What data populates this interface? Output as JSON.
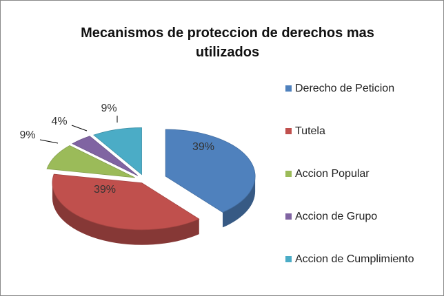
{
  "chart_data": {
    "type": "pie",
    "title": "Mecanismos de proteccion de derechos mas utilizados",
    "categories": [
      "Derecho de Peticion",
      "Tutela",
      "Accion Popular",
      "Accion de Grupo",
      "Accion de Cumplimiento"
    ],
    "values": [
      39,
      39,
      9,
      4,
      9
    ],
    "value_labels": [
      "39%",
      "39%",
      "9%",
      "4%",
      "9%"
    ],
    "colors": [
      "#4f81bd",
      "#c0504d",
      "#9bbb59",
      "#8064a2",
      "#4bacc6"
    ],
    "legend": "right"
  }
}
